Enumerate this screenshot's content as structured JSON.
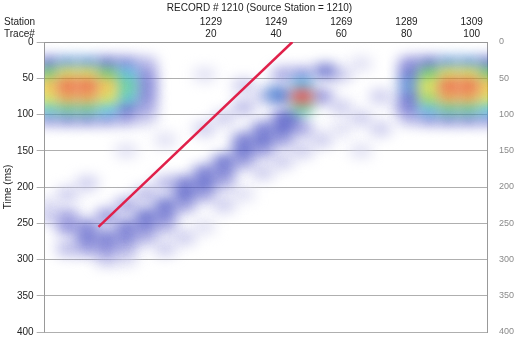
{
  "chart_data": {
    "type": "heatmap",
    "title": "RECORD # 1210 (Source Station = 1210)",
    "xlabel": "Trace#",
    "x2label": "Station",
    "ylabel": "Time (ms)",
    "xlim": [
      -31,
      105
    ],
    "xticks": [
      20,
      40,
      60,
      80,
      100
    ],
    "stations": [
      "1229",
      "1249",
      "1269",
      "1289",
      "1309"
    ],
    "ylim": [
      0,
      400
    ],
    "yticks": [
      0,
      50,
      100,
      150,
      200,
      250,
      300,
      350,
      400
    ],
    "y2lim": [
      0,
      400
    ],
    "y2ticks": [
      0,
      50,
      100,
      150,
      200,
      250,
      300,
      350,
      400
    ],
    "grid": true,
    "cell_width": 6,
    "cell_height": 15,
    "cells": [
      [
        -30,
        30,
        0.5
      ],
      [
        -24,
        30,
        0.55
      ],
      [
        -18,
        30,
        0.55
      ],
      [
        -12,
        30,
        0.5
      ],
      [
        -6,
        30,
        0.4
      ],
      [
        0,
        30,
        0.25
      ],
      [
        -30,
        45,
        0.75
      ],
      [
        -24,
        45,
        0.85
      ],
      [
        -18,
        45,
        0.85
      ],
      [
        -12,
        45,
        0.75
      ],
      [
        -6,
        45,
        0.6
      ],
      [
        0,
        45,
        0.35
      ],
      [
        -30,
        60,
        0.9
      ],
      [
        -24,
        60,
        0.97
      ],
      [
        -18,
        60,
        0.97
      ],
      [
        -12,
        60,
        0.9
      ],
      [
        -6,
        60,
        0.7
      ],
      [
        0,
        60,
        0.4
      ],
      [
        -30,
        75,
        0.85
      ],
      [
        -24,
        75,
        0.92
      ],
      [
        -18,
        75,
        0.92
      ],
      [
        -12,
        75,
        0.85
      ],
      [
        -6,
        75,
        0.65
      ],
      [
        0,
        75,
        0.38
      ],
      [
        -30,
        90,
        0.65
      ],
      [
        -24,
        90,
        0.7
      ],
      [
        -18,
        90,
        0.7
      ],
      [
        -12,
        90,
        0.62
      ],
      [
        -6,
        90,
        0.5
      ],
      [
        0,
        90,
        0.3
      ],
      [
        -30,
        105,
        0.35
      ],
      [
        -24,
        105,
        0.4
      ],
      [
        -18,
        105,
        0.4
      ],
      [
        -12,
        105,
        0.35
      ],
      [
        -6,
        105,
        0.3
      ],
      [
        0,
        105,
        0.2
      ],
      [
        81,
        30,
        0.35
      ],
      [
        87,
        30,
        0.5
      ],
      [
        93,
        30,
        0.55
      ],
      [
        99,
        30,
        0.55
      ],
      [
        105,
        30,
        0.5
      ],
      [
        81,
        45,
        0.5
      ],
      [
        87,
        45,
        0.75
      ],
      [
        93,
        45,
        0.85
      ],
      [
        99,
        45,
        0.85
      ],
      [
        105,
        45,
        0.75
      ],
      [
        81,
        60,
        0.55
      ],
      [
        87,
        60,
        0.85
      ],
      [
        93,
        60,
        0.97
      ],
      [
        99,
        60,
        0.97
      ],
      [
        105,
        60,
        0.9
      ],
      [
        81,
        75,
        0.5
      ],
      [
        87,
        75,
        0.8
      ],
      [
        93,
        75,
        0.92
      ],
      [
        99,
        75,
        0.92
      ],
      [
        105,
        75,
        0.85
      ],
      [
        81,
        90,
        0.4
      ],
      [
        87,
        90,
        0.6
      ],
      [
        93,
        90,
        0.7
      ],
      [
        99,
        90,
        0.7
      ],
      [
        105,
        90,
        0.62
      ],
      [
        81,
        105,
        0.25
      ],
      [
        87,
        105,
        0.35
      ],
      [
        93,
        105,
        0.4
      ],
      [
        99,
        105,
        0.4
      ],
      [
        105,
        105,
        0.35
      ],
      [
        48,
        60,
        0.6
      ],
      [
        48,
        75,
        1.0
      ],
      [
        48,
        90,
        0.7
      ],
      [
        42,
        75,
        0.35
      ],
      [
        54,
        75,
        0.35
      ],
      [
        45,
        105,
        0.4
      ],
      [
        42,
        45,
        0.3
      ],
      [
        48,
        45,
        0.35
      ],
      [
        40,
        72,
        0.55
      ],
      [
        55,
        40,
        0.5
      ],
      [
        -24,
        240,
        0.3
      ],
      [
        -24,
        255,
        0.35
      ],
      [
        -18,
        255,
        0.4
      ],
      [
        -18,
        270,
        0.45
      ],
      [
        -12,
        270,
        0.45
      ],
      [
        -12,
        285,
        0.35
      ],
      [
        -6,
        255,
        0.45
      ],
      [
        -6,
        270,
        0.4
      ],
      [
        0,
        240,
        0.5
      ],
      [
        0,
        255,
        0.4
      ],
      [
        6,
        225,
        0.5
      ],
      [
        6,
        240,
        0.4
      ],
      [
        12,
        210,
        0.5
      ],
      [
        12,
        195,
        0.45
      ],
      [
        18,
        195,
        0.5
      ],
      [
        18,
        180,
        0.45
      ],
      [
        24,
        165,
        0.5
      ],
      [
        24,
        180,
        0.4
      ],
      [
        30,
        150,
        0.5
      ],
      [
        30,
        135,
        0.45
      ],
      [
        36,
        135,
        0.5
      ],
      [
        36,
        120,
        0.45
      ],
      [
        42,
        120,
        0.5
      ],
      [
        42,
        105,
        0.45
      ],
      [
        -6,
        285,
        0.25
      ],
      [
        0,
        270,
        0.25
      ],
      [
        6,
        255,
        0.25
      ],
      [
        12,
        225,
        0.3
      ],
      [
        18,
        210,
        0.3
      ],
      [
        24,
        195,
        0.25
      ],
      [
        30,
        165,
        0.3
      ],
      [
        36,
        150,
        0.3
      ],
      [
        42,
        135,
        0.3
      ],
      [
        48,
        120,
        0.3
      ],
      [
        -30,
        240,
        0.2
      ],
      [
        -30,
        225,
        0.15
      ],
      [
        -24,
        210,
        0.2
      ],
      [
        -18,
        195,
        0.2
      ],
      [
        -12,
        240,
        0.35
      ],
      [
        -6,
        225,
        0.3
      ],
      [
        0,
        210,
        0.25
      ],
      [
        6,
        195,
        0.25
      ],
      [
        -6,
        150,
        0.15
      ],
      [
        6,
        135,
        0.15
      ],
      [
        18,
        120,
        0.2
      ],
      [
        24,
        105,
        0.2
      ],
      [
        30,
        90,
        0.25
      ],
      [
        36,
        75,
        0.2
      ],
      [
        30,
        60,
        0.2
      ],
      [
        18,
        45,
        0.15
      ],
      [
        60,
        90,
        0.2
      ],
      [
        66,
        105,
        0.2
      ],
      [
        72,
        120,
        0.2
      ],
      [
        60,
        120,
        0.15
      ],
      [
        54,
        135,
        0.2
      ],
      [
        66,
        150,
        0.15
      ],
      [
        72,
        75,
        0.2
      ],
      [
        78,
        90,
        0.15
      ],
      [
        60,
        45,
        0.2
      ],
      [
        66,
        30,
        0.15
      ],
      [
        6,
        285,
        0.2
      ],
      [
        12,
        270,
        0.2
      ],
      [
        18,
        255,
        0.15
      ],
      [
        -18,
        285,
        0.3
      ],
      [
        -24,
        285,
        0.25
      ],
      [
        -12,
        300,
        0.2
      ],
      [
        -6,
        300,
        0.15
      ],
      [
        24,
        225,
        0.2
      ],
      [
        30,
        210,
        0.15
      ],
      [
        36,
        180,
        0.2
      ],
      [
        42,
        165,
        0.2
      ],
      [
        48,
        150,
        0.2
      ]
    ],
    "lines": [
      {
        "x": [
          -14.5,
          45
        ],
        "y": [
          255,
          0
        ],
        "color": "#e0204a"
      }
    ]
  }
}
